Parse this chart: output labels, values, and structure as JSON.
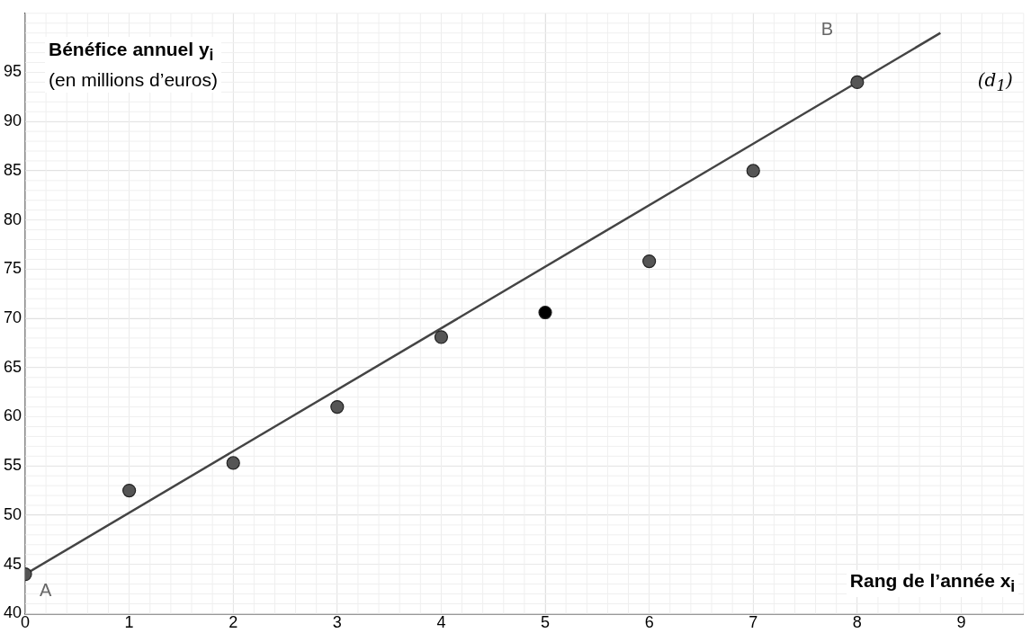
{
  "chart_data": {
    "type": "scatter",
    "ylabel": "Bénéfice annuel y$_{i}$\n(en millions d’euros)",
    "xlabel": "Rang de l’année x$_{i}$",
    "xlim": [
      0,
      9.6
    ],
    "xticks": [
      0,
      1,
      2,
      3,
      4,
      5,
      6,
      7,
      8,
      9
    ],
    "ylim": [
      40,
      101
    ],
    "yticks": [
      40,
      45,
      50,
      55,
      60,
      65,
      70,
      75,
      80,
      85,
      90,
      95
    ],
    "grid": true,
    "legend": false,
    "marker": "circle",
    "series": [
      {
        "x": [
          0,
          1,
          2,
          3,
          4,
          5,
          6,
          7,
          8
        ],
        "values": [
          44,
          52.5,
          55.3,
          61,
          68.1,
          70.6,
          75.8,
          85,
          94
        ],
        "colors": [
          "#555555",
          "#555555",
          "#555555",
          "#555555",
          "#555555",
          "#000000",
          "#555555",
          "#555555",
          "#555555"
        ]
      },
      {
        "type": "line",
        "x": [
          0,
          8.8
        ],
        "values": [
          44,
          99
        ],
        "color": "#444444",
        "marker": "none",
        "line_style": "solid"
      }
    ],
    "annotations": [
      {
        "text": "A",
        "x": 0,
        "y": 44
      },
      {
        "text": "B",
        "x": 8,
        "y": 94
      },
      "(d$_{1}$)"
    ]
  }
}
